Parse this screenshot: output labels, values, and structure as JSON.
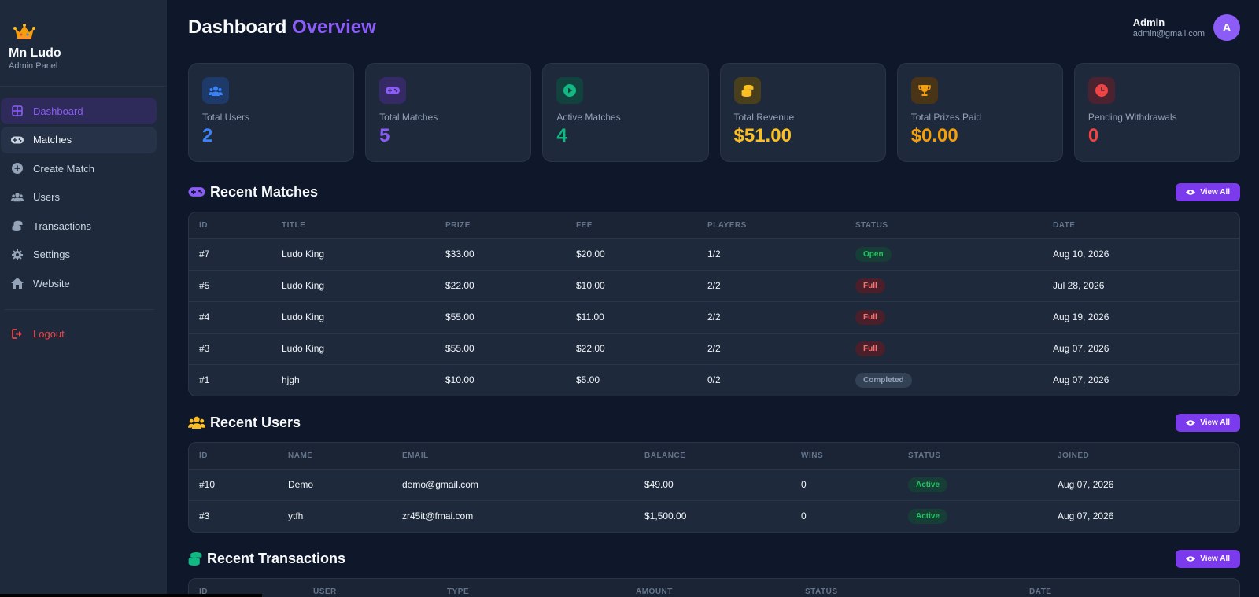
{
  "brand": {
    "name": "Mn Ludo",
    "subtitle": "Admin Panel"
  },
  "sidebar": {
    "items": [
      {
        "label": "Dashboard",
        "icon": "dashboard-icon"
      },
      {
        "label": "Matches",
        "icon": "gamepad-icon"
      },
      {
        "label": "Create Match",
        "icon": "plus-circle-icon"
      },
      {
        "label": "Users",
        "icon": "users-icon"
      },
      {
        "label": "Transactions",
        "icon": "coins-icon"
      },
      {
        "label": "Settings",
        "icon": "gear-icon"
      },
      {
        "label": "Website",
        "icon": "home-icon"
      }
    ],
    "logout": "Logout"
  },
  "header": {
    "title_main": "Dashboard",
    "title_accent": "Overview",
    "user_name": "Admin",
    "user_email": "admin@gmail.com",
    "avatar_letter": "A"
  },
  "stats": [
    {
      "label": "Total Users",
      "value": "2",
      "color": "#3b82f6",
      "icon": "users-icon"
    },
    {
      "label": "Total Matches",
      "value": "5",
      "color": "#8b5cf6",
      "icon": "gamepad-icon"
    },
    {
      "label": "Active Matches",
      "value": "4",
      "color": "#10b981",
      "icon": "play-icon"
    },
    {
      "label": "Total Revenue",
      "value": "$51.00",
      "color": "#fbbf24",
      "icon": "coins-icon"
    },
    {
      "label": "Total Prizes Paid",
      "value": "$0.00",
      "color": "#f59e0b",
      "icon": "trophy-icon"
    },
    {
      "label": "Pending Withdrawals",
      "value": "0",
      "color": "#ef4444",
      "icon": "clock-icon"
    }
  ],
  "recent_matches": {
    "title": "Recent Matches",
    "view_all": "View All",
    "columns": [
      "ID",
      "TITLE",
      "PRIZE",
      "FEE",
      "PLAYERS",
      "STATUS",
      "DATE"
    ],
    "rows": [
      {
        "id": "#7",
        "title": "Ludo King",
        "prize": "$33.00",
        "fee": "$20.00",
        "players": "1/2",
        "status": "Open",
        "date": "Aug 10, 2026"
      },
      {
        "id": "#5",
        "title": "Ludo King",
        "prize": "$22.00",
        "fee": "$10.00",
        "players": "2/2",
        "status": "Full",
        "date": "Jul 28, 2026"
      },
      {
        "id": "#4",
        "title": "Ludo King",
        "prize": "$55.00",
        "fee": "$11.00",
        "players": "2/2",
        "status": "Full",
        "date": "Aug 19, 2026"
      },
      {
        "id": "#3",
        "title": "Ludo King",
        "prize": "$55.00",
        "fee": "$22.00",
        "players": "2/2",
        "status": "Full",
        "date": "Aug 07, 2026"
      },
      {
        "id": "#1",
        "title": "hjgh",
        "prize": "$10.00",
        "fee": "$5.00",
        "players": "0/2",
        "status": "Completed",
        "date": "Aug 07, 2026"
      }
    ]
  },
  "recent_users": {
    "title": "Recent Users",
    "view_all": "View All",
    "columns": [
      "ID",
      "NAME",
      "EMAIL",
      "BALANCE",
      "WINS",
      "STATUS",
      "JOINED"
    ],
    "rows": [
      {
        "id": "#10",
        "name": "Demo",
        "email": "demo@gmail.com",
        "balance": "$49.00",
        "wins": "0",
        "status": "Active",
        "joined": "Aug 07, 2026"
      },
      {
        "id": "#3",
        "name": "ytfh",
        "email": "zr45it@fmai.com",
        "balance": "$1,500.00",
        "wins": "0",
        "status": "Active",
        "joined": "Aug 07, 2026"
      }
    ]
  },
  "recent_transactions": {
    "title": "Recent Transactions",
    "view_all": "View All",
    "columns": [
      "ID",
      "USER",
      "TYPE",
      "AMOUNT",
      "STATUS",
      "DATE"
    ]
  }
}
